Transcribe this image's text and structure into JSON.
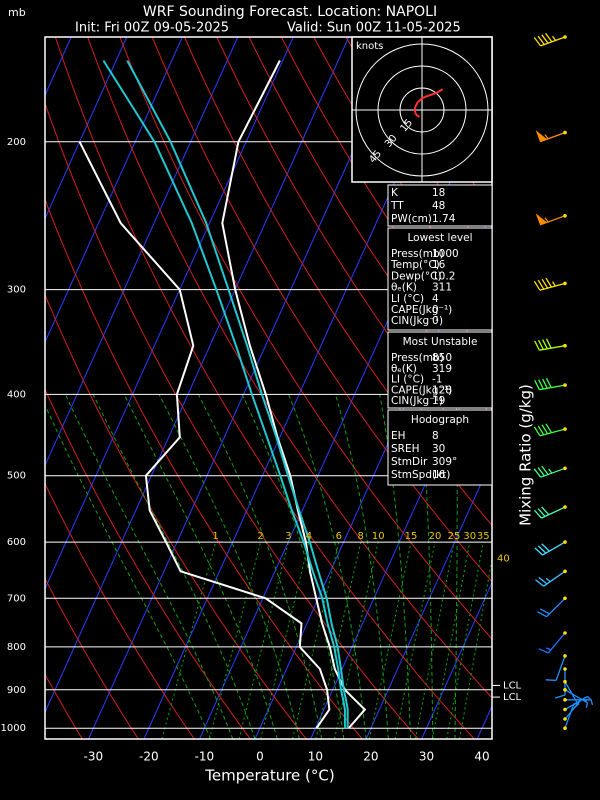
{
  "chart_data": {
    "type": "skewt",
    "title": "WRF Sounding Forecast. Location: NAPOLI",
    "init": "Init: Fri 00Z 09-05-2025",
    "valid": "Valid: Sun 00Z 11-05-2025",
    "y_label": "mb",
    "x_label": "Temperature (°C)",
    "y2_label": "Mixing Ratio (g/kg)",
    "log_y": true,
    "xlim": [
      -38.7,
      41.8
    ],
    "xticks": [
      -30,
      -20,
      -10,
      0,
      10,
      20,
      30,
      40
    ],
    "ylim": [
      1030,
      150
    ],
    "yticks": [
      200,
      300,
      400,
      500,
      600,
      700,
      800,
      900,
      1000
    ],
    "y": [
      1000,
      950,
      925,
      900,
      850,
      800,
      750,
      700,
      650,
      600,
      550,
      500,
      450,
      400,
      350,
      300,
      250,
      200,
      160
    ],
    "series": [
      {
        "color": "#ffffff",
        "values": [
          16,
          17.4,
          14.8,
          12.2,
          8.7,
          6.0,
          2.7,
          -0.4,
          -3.7,
          -6.8,
          -10.8,
          -15,
          -20.4,
          -26,
          -32.8,
          -40,
          -47.7,
          -51.4,
          -50.5
        ]
      },
      {
        "color": "#ffffff",
        "values": [
          10.2,
          11,
          10,
          9,
          6.0,
          0.6,
          -1,
          -9.5,
          -27,
          -32,
          -37.5,
          -41,
          -38,
          -42,
          -43,
          -50,
          -66,
          -80,
          null
        ]
      },
      {
        "color": "#20c8d0",
        "values": [
          15.3,
          13.8,
          12.7,
          11.5,
          9.3,
          6.8,
          3.7,
          0.7,
          -3.2,
          -7.2,
          -11.9,
          -16.8,
          -22.3,
          -28.5,
          -35.3,
          -43.4,
          -53.2,
          -66.5,
          -82.3
        ]
      },
      {
        "color": "#20c8d0",
        "values": [
          15.8,
          14.3,
          13.2,
          12,
          9.8,
          7.4,
          4.4,
          1.5,
          -2.2,
          -6.1,
          -10.6,
          -15.4,
          -20.6,
          -26.7,
          -33.3,
          -41.2,
          -50.6,
          -63.6,
          -78
        ]
      }
    ],
    "mixing_ratio": {
      "color": "#00b000",
      "label_color": "#e8c800",
      "label_pressure": 600,
      "values": [
        1,
        2,
        3,
        4,
        6,
        8,
        10,
        15,
        20,
        25,
        30,
        35,
        40
      ]
    },
    "lcl": [
      {
        "label": "LCL",
        "pressure": 889
      },
      {
        "label": "LCL",
        "pressure": 918
      }
    ],
    "wind": {
      "pressure": [
        150,
        195,
        245,
        295,
        350,
        390,
        440,
        490,
        545,
        600,
        650,
        700,
        770,
        820,
        850,
        880,
        900,
        925,
        950,
        975,
        1000
      ],
      "direction": [
        250,
        250,
        250,
        255,
        260,
        260,
        255,
        250,
        245,
        240,
        235,
        225,
        220,
        200,
        180,
        150,
        120,
        90,
        60,
        40,
        20
      ],
      "speed": [
        45,
        55,
        55,
        45,
        40,
        40,
        40,
        35,
        30,
        30,
        25,
        20,
        15,
        10,
        8,
        6,
        5,
        5,
        5,
        5,
        5
      ],
      "colors": [
        "#ffe000",
        "#ff8c00",
        "#ff8c00",
        "#ffe000",
        "#a8ff00",
        "#40ff40",
        "#40ff40",
        "#40ff80",
        "#40ffb0",
        "#40e0ff",
        "#40c0ff",
        "#2090ff",
        "#1e70ff",
        "#1e90ff",
        "#1e90ff",
        "#1e90ff",
        "#1e90ff",
        "#1e90ff",
        "#1e90ff",
        "#1e90ff",
        "#1e90ff"
      ]
    },
    "hodograph": {
      "title": "knots",
      "rings": [
        15,
        30,
        45
      ],
      "top_pressure": 700,
      "color": "#ff3030"
    }
  },
  "stats": {
    "indices": [
      [
        "K",
        18
      ],
      [
        "TT",
        48
      ],
      [
        "PW(cm)",
        1.74
      ]
    ],
    "lowest_level": {
      "title": "Lowest level",
      "rows": [
        [
          "Press(mb)",
          1000
        ],
        [
          "Temp(°C)",
          16
        ],
        [
          "Dewp(°C)",
          10.2
        ],
        [
          "θₑ(K)",
          311
        ],
        [
          "LI (°C)",
          4
        ],
        [
          "CAPE(Jkg⁻¹)",
          0
        ],
        [
          "CIN(Jkg⁻¹)",
          0
        ]
      ]
    },
    "most_unstable": {
      "title": "Most Unstable",
      "rows": [
        [
          "Press(mb)",
          850
        ],
        [
          "θₑ(K)",
          319
        ],
        [
          "LI (°C)",
          -1
        ],
        [
          "CAPE(Jkg⁻¹)",
          128
        ],
        [
          "CIN(Jkg⁻¹)",
          19
        ]
      ]
    },
    "hodograph": {
      "title": "Hodograph",
      "rows": [
        [
          "EH",
          8
        ],
        [
          "SREH",
          30
        ],
        [
          "StmDir",
          "309°"
        ],
        [
          "StmSpd(kt)",
          16
        ]
      ]
    }
  }
}
